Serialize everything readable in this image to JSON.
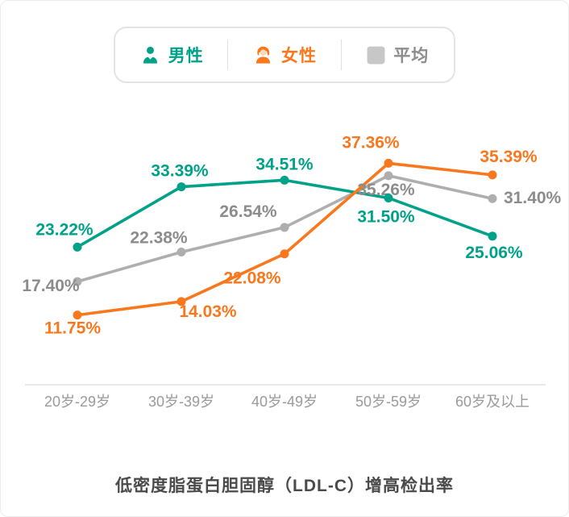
{
  "legend": {
    "items": [
      {
        "label": "男性",
        "color": "#00a189",
        "icon": "male-icon"
      },
      {
        "label": "女性",
        "color": "#f9771d",
        "icon": "female-icon"
      },
      {
        "label": "平均",
        "color": "#8c8c8c",
        "icon": "average-square-icon"
      }
    ]
  },
  "chart_data": {
    "type": "line",
    "title": "低密度脂蛋白胆固醇（LDL-C）增高检出率",
    "categories": [
      "20岁-29岁",
      "30岁-39岁",
      "40岁-49岁",
      "50岁-59岁",
      "60岁及以上"
    ],
    "series": [
      {
        "name": "男性",
        "color": "#00a189",
        "label_color": "#00a189",
        "values": [
          23.22,
          33.39,
          34.51,
          31.5,
          25.06
        ]
      },
      {
        "name": "女性",
        "color": "#f9771d",
        "label_color": "#f9771d",
        "values": [
          11.75,
          14.03,
          22.08,
          37.36,
          35.39
        ]
      },
      {
        "name": "平均",
        "color": "#aeaeae",
        "label_color": "#8c8c8c",
        "values": [
          17.4,
          22.38,
          26.54,
          35.26,
          31.4
        ]
      }
    ],
    "value_suffix": "%",
    "ylim": [
      0,
      45
    ],
    "grid": false,
    "legend_position": "top",
    "xlabel": "",
    "ylabel": ""
  }
}
